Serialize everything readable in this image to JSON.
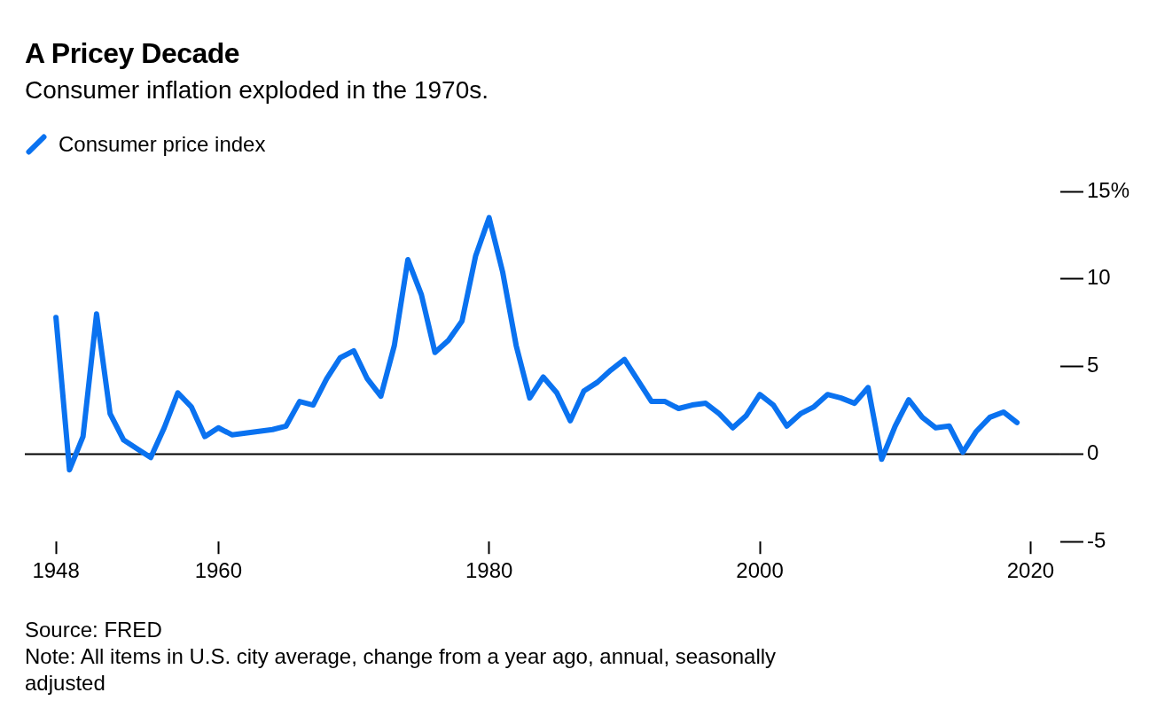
{
  "chart_data": {
    "type": "line",
    "title": "A Pricey Decade",
    "subtitle": "Consumer inflation exploded in the 1970s.",
    "x": [
      1948,
      1949,
      1950,
      1951,
      1952,
      1953,
      1954,
      1955,
      1956,
      1957,
      1958,
      1959,
      1960,
      1961,
      1962,
      1963,
      1964,
      1965,
      1966,
      1967,
      1968,
      1969,
      1970,
      1971,
      1972,
      1973,
      1974,
      1975,
      1976,
      1977,
      1978,
      1979,
      1980,
      1981,
      1982,
      1983,
      1984,
      1985,
      1986,
      1987,
      1988,
      1989,
      1990,
      1991,
      1992,
      1993,
      1994,
      1995,
      1996,
      1997,
      1998,
      1999,
      2000,
      2001,
      2002,
      2003,
      2004,
      2005,
      2006,
      2007,
      2008,
      2009,
      2010,
      2011,
      2012,
      2013,
      2014,
      2015,
      2016,
      2017,
      2018,
      2019
    ],
    "series": [
      {
        "name": "Consumer price index",
        "color": "#0a72f0",
        "values": [
          7.8,
          -0.9,
          1.0,
          8.0,
          2.3,
          0.8,
          0.3,
          -0.2,
          1.5,
          3.5,
          2.7,
          1.0,
          1.5,
          1.1,
          1.2,
          1.3,
          1.4,
          1.6,
          3.0,
          2.8,
          4.3,
          5.5,
          5.9,
          4.3,
          3.3,
          6.2,
          11.1,
          9.1,
          5.8,
          6.5,
          7.6,
          11.3,
          13.5,
          10.4,
          6.2,
          3.2,
          4.4,
          3.5,
          1.9,
          3.6,
          4.1,
          4.8,
          5.4,
          4.2,
          3.0,
          3.0,
          2.6,
          2.8,
          2.9,
          2.3,
          1.5,
          2.2,
          3.4,
          2.8,
          1.6,
          2.3,
          2.7,
          3.4,
          3.2,
          2.9,
          3.8,
          -0.3,
          1.6,
          3.1,
          2.1,
          1.5,
          1.6,
          0.1,
          1.3,
          2.1,
          2.4,
          1.8
        ]
      }
    ],
    "xlim": [
      1945.7,
      2022.2
    ],
    "xticks": [
      1948,
      1960,
      1980,
      2000,
      2020
    ],
    "ylim": [
      -5,
      15
    ],
    "yticks": [
      {
        "value": -5,
        "label": "-5"
      },
      0,
      5,
      10,
      {
        "value": 15,
        "label": "15%"
      }
    ],
    "ref_lines": [
      {
        "axis": "y",
        "value": 0,
        "color": "#000000"
      }
    ],
    "grid": false,
    "legend": "top left",
    "marker": "none",
    "line_style": "solid",
    "annotations": [
      "Source: FRED",
      "Note: All items in U.S. city average, change from a year ago, annual, seasonally adjusted"
    ]
  }
}
